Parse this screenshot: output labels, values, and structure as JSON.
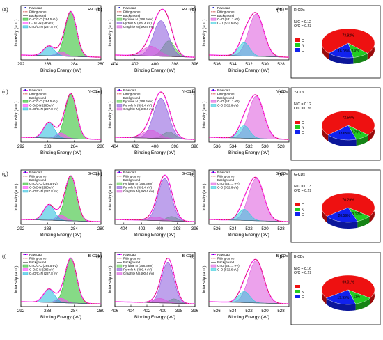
{
  "figure": {
    "axis_labels": {
      "x": "Binding Energy (eV)",
      "y": "Intensity (a.u.)"
    },
    "legend_common": {
      "raw": "Raw data",
      "fit": "Fitting curve",
      "bg": "Background"
    },
    "colors": {
      "raw": "#ff33ff",
      "rawdash": "#2222cc",
      "fit": "#cc2222",
      "bg": "#444444",
      "c1": "#22bb22",
      "c2": "#ff44ff",
      "c3": "#22bbdd",
      "n1": "#8855dd",
      "n2": "#55cc44",
      "n3": "#dd55dd",
      "o1": "#dd55dd",
      "o2": "#33ccdd",
      "pieC": "#ee1111",
      "pieN": "#22cc22",
      "pieO": "#1122ee"
    }
  },
  "chart_data": [
    {
      "panel": "(a)",
      "type": "line",
      "element": "C1s",
      "tag": "R-CDs",
      "xlim": [
        292,
        280
      ],
      "xticks": [
        292,
        288,
        284,
        280
      ],
      "legend": [
        "C=C/C-C (284.5 eV)",
        "C-O/C-N (286 eV)",
        "C=O/C=N (287.8 eV)"
      ],
      "components": [
        {
          "center": 284.5,
          "amp": 1.0,
          "sigma": 0.85
        },
        {
          "center": 286.0,
          "amp": 0.1,
          "sigma": 0.7
        },
        {
          "center": 287.8,
          "amp": 0.22,
          "sigma": 0.8
        }
      ]
    },
    {
      "panel": "(b)",
      "type": "line",
      "element": "N1s",
      "tag": "R-CDs",
      "xlim": [
        404,
        396
      ],
      "xticks": [
        404,
        402,
        400,
        398,
        396
      ],
      "legend": [
        "Pyridine N (398.6 eV)",
        "Pyrrole N (399.4 eV)",
        "Graphite N (400.4 eV)"
      ],
      "components": [
        {
          "center": 398.6,
          "amp": 0.35,
          "sigma": 0.6
        },
        {
          "center": 399.4,
          "amp": 0.8,
          "sigma": 0.75
        },
        {
          "center": 400.4,
          "amp": 0.22,
          "sigma": 0.8
        }
      ]
    },
    {
      "panel": "(c)",
      "type": "line",
      "element": "O1s",
      "tag": "R-CDs",
      "xlim": [
        537,
        527
      ],
      "xticks": [
        536,
        534,
        532,
        530,
        528
      ],
      "legend": [
        "C=O (531.1 eV)",
        "C-O (532.6 eV)"
      ],
      "components": [
        {
          "center": 531.1,
          "amp": 0.95,
          "sigma": 0.95
        },
        {
          "center": 532.6,
          "amp": 0.3,
          "sigma": 0.7
        }
      ]
    },
    {
      "panel": "(d)",
      "type": "line",
      "element": "C1s",
      "tag": "Y-CDs",
      "xlim": [
        292,
        280
      ],
      "xticks": [
        292,
        288,
        284,
        280
      ],
      "legend": [
        "C=C/C-C (284.5 eV)",
        "C-O/C-N (286 eV)",
        "C=O/C=N (287.8 eV)"
      ],
      "components": [
        {
          "center": 284.5,
          "amp": 1.0,
          "sigma": 0.85
        },
        {
          "center": 286.0,
          "amp": 0.12,
          "sigma": 0.7
        },
        {
          "center": 287.8,
          "amp": 0.35,
          "sigma": 0.8
        }
      ]
    },
    {
      "panel": "(e)",
      "type": "line",
      "element": "N1s",
      "tag": "Y-CDs",
      "xlim": [
        404,
        396
      ],
      "xticks": [
        404,
        402,
        400,
        398,
        396
      ],
      "legend": [
        "Pyridine N (398.6 eV)",
        "Pyrrole N (399.4 eV)",
        "Graphite N (400.4 eV)"
      ],
      "components": [
        {
          "center": 398.6,
          "amp": 0.15,
          "sigma": 0.6
        },
        {
          "center": 399.4,
          "amp": 0.9,
          "sigma": 0.75
        },
        {
          "center": 400.4,
          "amp": 0.18,
          "sigma": 0.8
        }
      ]
    },
    {
      "panel": "(f)",
      "type": "line",
      "element": "O1s",
      "tag": "Y-CDs",
      "xlim": [
        537,
        527
      ],
      "xticks": [
        536,
        534,
        532,
        530,
        528
      ],
      "legend": [
        "C=O (531.1 eV)",
        "C-O (532.6 eV)"
      ],
      "components": [
        {
          "center": 531.1,
          "amp": 0.95,
          "sigma": 0.95
        },
        {
          "center": 532.6,
          "amp": 0.28,
          "sigma": 0.7
        }
      ]
    },
    {
      "panel": "(g)",
      "type": "line",
      "element": "C1s",
      "tag": "G-CDs",
      "xlim": [
        292,
        280
      ],
      "xticks": [
        292,
        288,
        284,
        280
      ],
      "legend": [
        "C=C/C-C (284.5 eV)",
        "C-O/C-N (286 eV)",
        "C=O/C=N (287.8 eV)"
      ],
      "components": [
        {
          "center": 284.5,
          "amp": 1.0,
          "sigma": 0.85
        },
        {
          "center": 286.0,
          "amp": 0.12,
          "sigma": 0.7
        },
        {
          "center": 287.8,
          "amp": 0.35,
          "sigma": 0.8
        }
      ]
    },
    {
      "panel": "(h)",
      "type": "line",
      "element": "N1s",
      "tag": "G-CDs",
      "xlim": [
        405,
        396
      ],
      "xticks": [
        404,
        402,
        400,
        398,
        396
      ],
      "legend": [
        "Pyridine N (398.6 eV)",
        "Pyrrole N (399.4 eV)",
        "Graphite N (400.4 eV)"
      ],
      "components": [
        {
          "center": 398.6,
          "amp": 0.1,
          "sigma": 0.6
        },
        {
          "center": 399.4,
          "amp": 0.95,
          "sigma": 0.75
        },
        {
          "center": 400.4,
          "amp": 0.08,
          "sigma": 0.8
        }
      ]
    },
    {
      "panel": "(i)",
      "type": "line",
      "element": "O1s",
      "tag": "G-CDs",
      "xlim": [
        537,
        527
      ],
      "xticks": [
        536,
        534,
        532,
        530,
        528
      ],
      "legend": [
        "C=O (531.1 eV)",
        "C-O (532.6 eV)"
      ],
      "components": [
        {
          "center": 531.1,
          "amp": 0.95,
          "sigma": 0.95
        },
        {
          "center": 532.6,
          "amp": 0.25,
          "sigma": 0.7
        }
      ]
    },
    {
      "panel": "(j)",
      "type": "line",
      "element": "C1s",
      "tag": "B-CDs",
      "xlim": [
        292,
        280
      ],
      "xticks": [
        292,
        288,
        284,
        280
      ],
      "legend": [
        "C=C/C-C (284.5 eV)",
        "C-O/C-N (286 eV)",
        "C=O/C=N (287.8 eV)"
      ],
      "components": [
        {
          "center": 284.5,
          "amp": 1.0,
          "sigma": 0.85
        },
        {
          "center": 286.0,
          "amp": 0.1,
          "sigma": 0.7
        },
        {
          "center": 287.8,
          "amp": 0.3,
          "sigma": 0.8
        }
      ]
    },
    {
      "panel": "(k)",
      "type": "line",
      "element": "N1s",
      "tag": "B-CDs",
      "xlim": [
        406,
        396
      ],
      "xticks": [
        406,
        404,
        402,
        400,
        398,
        396
      ],
      "legend": [
        "Pyridine N (398.6 eV)",
        "Pyrrole N (399.4 eV)",
        "Graphite N (400.4 eV)"
      ],
      "components": [
        {
          "center": 398.6,
          "amp": 0.1,
          "sigma": 0.6
        },
        {
          "center": 399.4,
          "amp": 0.92,
          "sigma": 0.75
        },
        {
          "center": 400.4,
          "amp": 0.1,
          "sigma": 0.8
        }
      ]
    },
    {
      "panel": "(l)",
      "type": "line",
      "element": "O1s",
      "tag": "B-CDs",
      "xlim": [
        537,
        527
      ],
      "xticks": [
        536,
        534,
        532,
        530,
        528
      ],
      "legend": [
        "C=O (531.1 eV)",
        "C-O (532.6 eV)"
      ],
      "components": [
        {
          "center": 531.1,
          "amp": 0.95,
          "sigma": 0.95
        },
        {
          "center": 532.6,
          "amp": 0.25,
          "sigma": 0.7
        }
      ]
    },
    {
      "panel": "(m)",
      "type": "pie",
      "tag": "R-CDs",
      "ratios": [
        "N/C = 0.12",
        "O/C = 0.23"
      ],
      "labels": [
        "C",
        "N",
        "O"
      ],
      "values": [
        73.92,
        9.9,
        16.08
      ],
      "value_labels": [
        "73.92%",
        "9.9%",
        "16.08%"
      ]
    },
    {
      "panel": "(n)",
      "type": "pie",
      "tag": "Y-CDs",
      "ratios": [
        "N/C = 0.12",
        "O/C = 0.26"
      ],
      "labels": [
        "C",
        "N",
        "O"
      ],
      "values": [
        72.56,
        8.79,
        18.65
      ],
      "value_labels": [
        "72.56%",
        "8.79%",
        "18.65%"
      ]
    },
    {
      "panel": "(o)",
      "type": "pie",
      "tag": "G-CDs",
      "ratios": [
        "N/C = 0.13",
        "O/C = 0.29"
      ],
      "labels": [
        "C",
        "N",
        "O"
      ],
      "values": [
        70.29,
        9.12,
        20.59
      ],
      "value_labels": [
        "70.29%",
        "9.12%",
        "20.59%"
      ]
    },
    {
      "panel": "(p)",
      "type": "pie",
      "tag": "B-CDs",
      "ratios": [
        "N/C = 0.16",
        "O/C = 0.29"
      ],
      "labels": [
        "C",
        "N",
        "O"
      ],
      "values": [
        69.01,
        11.0,
        19.99
      ],
      "value_labels": [
        "69.01%",
        "11%",
        "19.99%"
      ]
    }
  ]
}
